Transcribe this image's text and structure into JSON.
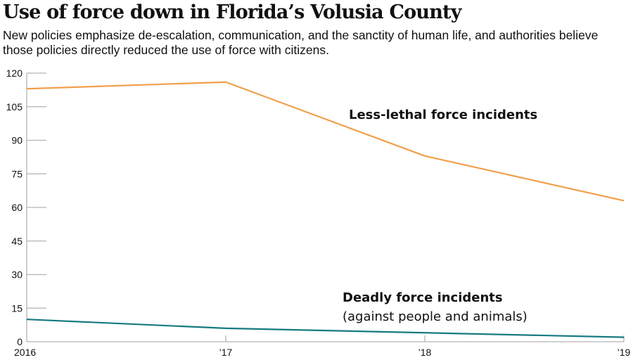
{
  "chart_data": {
    "type": "line",
    "title": "Use of force down in Florida’s Volusia County",
    "subtitle": "New policies emphasize de-escalation, communication, and the sanctity of human life, and authorities believe those policies directly reduced the use of force with citizens.",
    "x": [
      "2016",
      "’17",
      "’18",
      "’19"
    ],
    "series": [
      {
        "name": "Less-lethal force incidents",
        "sublabel": "",
        "color": "#f0a04b",
        "values": [
          113,
          116,
          83,
          63
        ]
      },
      {
        "name": "Deadly force incidents",
        "sublabel": "(against people and animals)",
        "color": "#167a80",
        "values": [
          10,
          6,
          4,
          2
        ]
      }
    ],
    "yticks": [
      0,
      15,
      30,
      45,
      60,
      75,
      90,
      105,
      120
    ],
    "ylim": [
      0,
      120
    ],
    "xlabel": "",
    "ylabel": "",
    "grid": false,
    "legend": "inline-labels"
  }
}
